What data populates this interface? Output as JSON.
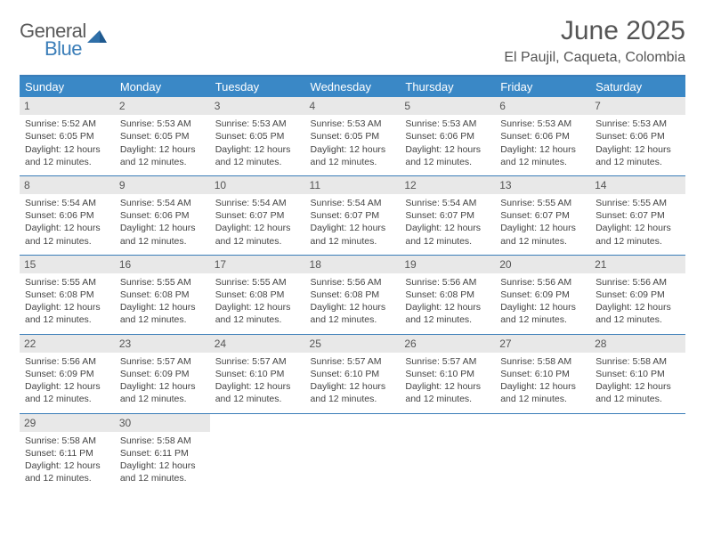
{
  "brand": {
    "word1": "General",
    "word2": "Blue",
    "gray": "#5a5a5a",
    "blue": "#3a7db8"
  },
  "title": "June 2025",
  "location": "El Paujil, Caqueta, Colombia",
  "colors": {
    "header_bg": "#3a88c6",
    "header_fg": "#ffffff",
    "daynum_bg": "#e8e8e8",
    "rule": "#3a7db8",
    "text": "#444444"
  },
  "weekdays": [
    "Sunday",
    "Monday",
    "Tuesday",
    "Wednesday",
    "Thursday",
    "Friday",
    "Saturday"
  ],
  "weeks": [
    [
      {
        "n": "1",
        "sunrise": "5:52 AM",
        "sunset": "6:05 PM",
        "daylight": "12 hours and 12 minutes."
      },
      {
        "n": "2",
        "sunrise": "5:53 AM",
        "sunset": "6:05 PM",
        "daylight": "12 hours and 12 minutes."
      },
      {
        "n": "3",
        "sunrise": "5:53 AM",
        "sunset": "6:05 PM",
        "daylight": "12 hours and 12 minutes."
      },
      {
        "n": "4",
        "sunrise": "5:53 AM",
        "sunset": "6:05 PM",
        "daylight": "12 hours and 12 minutes."
      },
      {
        "n": "5",
        "sunrise": "5:53 AM",
        "sunset": "6:06 PM",
        "daylight": "12 hours and 12 minutes."
      },
      {
        "n": "6",
        "sunrise": "5:53 AM",
        "sunset": "6:06 PM",
        "daylight": "12 hours and 12 minutes."
      },
      {
        "n": "7",
        "sunrise": "5:53 AM",
        "sunset": "6:06 PM",
        "daylight": "12 hours and 12 minutes."
      }
    ],
    [
      {
        "n": "8",
        "sunrise": "5:54 AM",
        "sunset": "6:06 PM",
        "daylight": "12 hours and 12 minutes."
      },
      {
        "n": "9",
        "sunrise": "5:54 AM",
        "sunset": "6:06 PM",
        "daylight": "12 hours and 12 minutes."
      },
      {
        "n": "10",
        "sunrise": "5:54 AM",
        "sunset": "6:07 PM",
        "daylight": "12 hours and 12 minutes."
      },
      {
        "n": "11",
        "sunrise": "5:54 AM",
        "sunset": "6:07 PM",
        "daylight": "12 hours and 12 minutes."
      },
      {
        "n": "12",
        "sunrise": "5:54 AM",
        "sunset": "6:07 PM",
        "daylight": "12 hours and 12 minutes."
      },
      {
        "n": "13",
        "sunrise": "5:55 AM",
        "sunset": "6:07 PM",
        "daylight": "12 hours and 12 minutes."
      },
      {
        "n": "14",
        "sunrise": "5:55 AM",
        "sunset": "6:07 PM",
        "daylight": "12 hours and 12 minutes."
      }
    ],
    [
      {
        "n": "15",
        "sunrise": "5:55 AM",
        "sunset": "6:08 PM",
        "daylight": "12 hours and 12 minutes."
      },
      {
        "n": "16",
        "sunrise": "5:55 AM",
        "sunset": "6:08 PM",
        "daylight": "12 hours and 12 minutes."
      },
      {
        "n": "17",
        "sunrise": "5:55 AM",
        "sunset": "6:08 PM",
        "daylight": "12 hours and 12 minutes."
      },
      {
        "n": "18",
        "sunrise": "5:56 AM",
        "sunset": "6:08 PM",
        "daylight": "12 hours and 12 minutes."
      },
      {
        "n": "19",
        "sunrise": "5:56 AM",
        "sunset": "6:08 PM",
        "daylight": "12 hours and 12 minutes."
      },
      {
        "n": "20",
        "sunrise": "5:56 AM",
        "sunset": "6:09 PM",
        "daylight": "12 hours and 12 minutes."
      },
      {
        "n": "21",
        "sunrise": "5:56 AM",
        "sunset": "6:09 PM",
        "daylight": "12 hours and 12 minutes."
      }
    ],
    [
      {
        "n": "22",
        "sunrise": "5:56 AM",
        "sunset": "6:09 PM",
        "daylight": "12 hours and 12 minutes."
      },
      {
        "n": "23",
        "sunrise": "5:57 AM",
        "sunset": "6:09 PM",
        "daylight": "12 hours and 12 minutes."
      },
      {
        "n": "24",
        "sunrise": "5:57 AM",
        "sunset": "6:10 PM",
        "daylight": "12 hours and 12 minutes."
      },
      {
        "n": "25",
        "sunrise": "5:57 AM",
        "sunset": "6:10 PM",
        "daylight": "12 hours and 12 minutes."
      },
      {
        "n": "26",
        "sunrise": "5:57 AM",
        "sunset": "6:10 PM",
        "daylight": "12 hours and 12 minutes."
      },
      {
        "n": "27",
        "sunrise": "5:58 AM",
        "sunset": "6:10 PM",
        "daylight": "12 hours and 12 minutes."
      },
      {
        "n": "28",
        "sunrise": "5:58 AM",
        "sunset": "6:10 PM",
        "daylight": "12 hours and 12 minutes."
      }
    ],
    [
      {
        "n": "29",
        "sunrise": "5:58 AM",
        "sunset": "6:11 PM",
        "daylight": "12 hours and 12 minutes."
      },
      {
        "n": "30",
        "sunrise": "5:58 AM",
        "sunset": "6:11 PM",
        "daylight": "12 hours and 12 minutes."
      },
      null,
      null,
      null,
      null,
      null
    ]
  ],
  "labels": {
    "sunrise": "Sunrise:",
    "sunset": "Sunset:",
    "daylight": "Daylight:"
  }
}
